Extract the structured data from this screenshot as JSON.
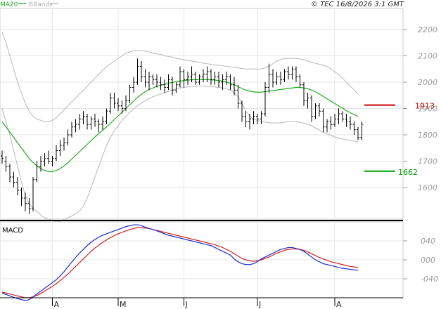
{
  "header": {
    "legend": [
      {
        "label": "MA20",
        "color": "#22aa22"
      },
      {
        "label": "BBands",
        "color": "#b0b0b0"
      }
    ],
    "copyright": "© TEC 16/8/2026 3:1 GMT"
  },
  "chart_data": [
    {
      "type": "ohlc",
      "panel": "price",
      "y_ticks": [
        "2200",
        "2100",
        "2000",
        "1900",
        "1800",
        "1700",
        "1600"
      ],
      "ylim": [
        1480,
        2280
      ],
      "x_labels": [
        "A",
        "M",
        "J",
        "J",
        "A"
      ],
      "bars": [
        [
          1720,
          1740,
          1690,
          1710
        ],
        [
          1700,
          1720,
          1660,
          1680
        ],
        [
          1680,
          1690,
          1620,
          1640
        ],
        [
          1640,
          1660,
          1600,
          1620
        ],
        [
          1620,
          1640,
          1570,
          1590
        ],
        [
          1590,
          1600,
          1530,
          1560
        ],
        [
          1560,
          1580,
          1510,
          1540
        ],
        [
          1540,
          1560,
          1500,
          1520
        ],
        [
          1520,
          1640,
          1510,
          1630
        ],
        [
          1630,
          1700,
          1620,
          1680
        ],
        [
          1680,
          1720,
          1660,
          1700
        ],
        [
          1700,
          1730,
          1680,
          1710
        ],
        [
          1710,
          1740,
          1690,
          1700
        ],
        [
          1700,
          1720,
          1680,
          1710
        ],
        [
          1710,
          1760,
          1700,
          1740
        ],
        [
          1740,
          1780,
          1720,
          1760
        ],
        [
          1760,
          1790,
          1740,
          1770
        ],
        [
          1770,
          1820,
          1760,
          1800
        ],
        [
          1800,
          1850,
          1790,
          1830
        ],
        [
          1830,
          1860,
          1810,
          1840
        ],
        [
          1840,
          1880,
          1820,
          1860
        ],
        [
          1860,
          1890,
          1840,
          1870
        ],
        [
          1870,
          1880,
          1820,
          1840
        ],
        [
          1840,
          1870,
          1820,
          1860
        ],
        [
          1860,
          1880,
          1830,
          1850
        ],
        [
          1850,
          1860,
          1810,
          1840
        ],
        [
          1840,
          1870,
          1820,
          1850
        ],
        [
          1850,
          1900,
          1840,
          1890
        ],
        [
          1890,
          1960,
          1880,
          1940
        ],
        [
          1940,
          1960,
          1900,
          1920
        ],
        [
          1920,
          1940,
          1890,
          1910
        ],
        [
          1910,
          1930,
          1880,
          1900
        ],
        [
          1900,
          1950,
          1890,
          1930
        ],
        [
          1930,
          1990,
          1920,
          1980
        ],
        [
          1980,
          2020,
          1960,
          2000
        ],
        [
          2000,
          2090,
          1990,
          2060
        ],
        [
          2060,
          2080,
          2000,
          2020
        ],
        [
          2020,
          2050,
          1980,
          2000
        ],
        [
          2000,
          2040,
          1970,
          2020
        ],
        [
          2020,
          2030,
          1990,
          2010
        ],
        [
          2010,
          2030,
          1980,
          2000
        ],
        [
          2000,
          2020,
          1970,
          1990
        ],
        [
          1990,
          2010,
          1960,
          1980
        ],
        [
          1980,
          2030,
          1970,
          2010
        ],
        [
          2010,
          2020,
          1950,
          1970
        ],
        [
          1970,
          2000,
          1960,
          1990
        ],
        [
          1990,
          2060,
          1980,
          2040
        ],
        [
          2040,
          2050,
          1980,
          2010
        ],
        [
          2010,
          2040,
          1990,
          2020
        ],
        [
          2020,
          2060,
          2000,
          2030
        ],
        [
          2030,
          2040,
          1990,
          2000
        ],
        [
          2000,
          2030,
          1990,
          2020
        ],
        [
          2020,
          2050,
          2000,
          2030
        ],
        [
          2030,
          2060,
          2000,
          2040
        ],
        [
          2040,
          2050,
          1990,
          2010
        ],
        [
          2010,
          2040,
          1990,
          2020
        ],
        [
          2020,
          2040,
          1980,
          2000
        ],
        [
          2000,
          2030,
          1970,
          2010
        ],
        [
          2010,
          2040,
          1990,
          2020
        ],
        [
          2020,
          2030,
          1970,
          1990
        ],
        [
          1990,
          2020,
          1950,
          1970
        ],
        [
          1970,
          1990,
          1900,
          1920
        ],
        [
          1920,
          1930,
          1850,
          1870
        ],
        [
          1870,
          1890,
          1830,
          1850
        ],
        [
          1850,
          1880,
          1820,
          1860
        ],
        [
          1860,
          1890,
          1840,
          1870
        ],
        [
          1870,
          1880,
          1840,
          1860
        ],
        [
          1860,
          1890,
          1840,
          1880
        ],
        [
          1880,
          2000,
          1870,
          1980
        ],
        [
          1980,
          2070,
          1960,
          2030
        ],
        [
          2030,
          2050,
          1980,
          2000
        ],
        [
          2000,
          2040,
          1990,
          2020
        ],
        [
          2020,
          2040,
          1990,
          2010
        ],
        [
          2010,
          2050,
          2000,
          2040
        ],
        [
          2040,
          2060,
          2010,
          2030
        ],
        [
          2030,
          2060,
          2010,
          2050
        ],
        [
          2050,
          2060,
          2000,
          2020
        ],
        [
          2020,
          2030,
          1980,
          1990
        ],
        [
          1990,
          2000,
          1910,
          1930
        ],
        [
          1930,
          1960,
          1900,
          1940
        ],
        [
          1940,
          1950,
          1850,
          1870
        ],
        [
          1870,
          1920,
          1860,
          1910
        ],
        [
          1910,
          1920,
          1870,
          1890
        ],
        [
          1890,
          1900,
          1810,
          1830
        ],
        [
          1830,
          1860,
          1810,
          1850
        ],
        [
          1850,
          1870,
          1820,
          1840
        ],
        [
          1840,
          1880,
          1830,
          1860
        ],
        [
          1860,
          1900,
          1840,
          1880
        ],
        [
          1880,
          1890,
          1850,
          1860
        ],
        [
          1860,
          1880,
          1830,
          1850
        ],
        [
          1850,
          1870,
          1820,
          1840
        ],
        [
          1840,
          1850,
          1800,
          1820
        ],
        [
          1820,
          1830,
          1780,
          1790
        ],
        [
          1790,
          1850,
          1780,
          1840
        ]
      ],
      "ma20": [
        1850,
        1830,
        1810,
        1790,
        1770,
        1750,
        1730,
        1710,
        1695,
        1682,
        1672,
        1665,
        1660,
        1660,
        1664,
        1672,
        1682,
        1694,
        1708,
        1722,
        1736,
        1750,
        1764,
        1778,
        1792,
        1805,
        1818,
        1830,
        1844,
        1858,
        1872,
        1886,
        1900,
        1914,
        1928,
        1942,
        1954,
        1964,
        1972,
        1978,
        1984,
        1988,
        1992,
        1996,
        1999,
        2002,
        2004,
        2006,
        2008,
        2009,
        2010,
        2010,
        2010,
        2010,
        2009,
        2008,
        2006,
        2004,
        2000,
        1996,
        1990,
        1983,
        1976,
        1970,
        1966,
        1963,
        1962,
        1962,
        1964,
        1966,
        1968,
        1970,
        1972,
        1974,
        1976,
        1978,
        1980,
        1980,
        1978,
        1975,
        1970,
        1963,
        1955,
        1946,
        1937,
        1928,
        1919,
        1910,
        1901,
        1892,
        1884,
        1877,
        1870
      ],
      "bb_upper": [
        2190,
        2150,
        2100,
        2050,
        2000,
        1960,
        1920,
        1890,
        1870,
        1860,
        1855,
        1850,
        1850,
        1855,
        1865,
        1880,
        1895,
        1910,
        1925,
        1940,
        1955,
        1970,
        1985,
        2000,
        2015,
        2030,
        2045,
        2060,
        2070,
        2080,
        2090,
        2100,
        2110,
        2115,
        2120,
        2120,
        2120,
        2118,
        2115,
        2110,
        2108,
        2105,
        2100,
        2098,
        2095,
        2090,
        2088,
        2085,
        2082,
        2080,
        2078,
        2075,
        2072,
        2070,
        2068,
        2066,
        2064,
        2062,
        2060,
        2058,
        2056,
        2054,
        2052,
        2050,
        2050,
        2050,
        2050,
        2050,
        2055,
        2060,
        2070,
        2080,
        2085,
        2090,
        2090,
        2090,
        2090,
        2088,
        2085,
        2080,
        2076,
        2072,
        2068,
        2064,
        2060,
        2050,
        2040,
        2030,
        2015,
        2000,
        1985,
        1970,
        1955
      ],
      "bb_lower": [
        1900,
        1850,
        1800,
        1740,
        1680,
        1620,
        1570,
        1540,
        1520,
        1510,
        1495,
        1485,
        1480,
        1475,
        1470,
        1472,
        1478,
        1485,
        1492,
        1500,
        1510,
        1530,
        1560,
        1600,
        1640,
        1680,
        1720,
        1760,
        1790,
        1815,
        1835,
        1855,
        1870,
        1885,
        1900,
        1910,
        1920,
        1930,
        1938,
        1945,
        1950,
        1955,
        1960,
        1965,
        1970,
        1975,
        1978,
        1980,
        1982,
        1983,
        1984,
        1985,
        1985,
        1984,
        1983,
        1982,
        1980,
        1978,
        1975,
        1970,
        1960,
        1945,
        1920,
        1890,
        1870,
        1860,
        1855,
        1850,
        1848,
        1846,
        1845,
        1845,
        1846,
        1848,
        1850,
        1850,
        1850,
        1848,
        1844,
        1840,
        1834,
        1826,
        1818,
        1810,
        1804,
        1798,
        1792,
        1788,
        1784,
        1781,
        1778,
        1776,
        1775
      ]
    },
    {
      "type": "line",
      "panel": "macd",
      "title": "MACD",
      "y_ticks": [
        "040",
        "000",
        "-040"
      ],
      "ylim": [
        -80,
        80
      ],
      "series": [
        {
          "color": "#1f2bd0",
          "values": [
            -70,
            -73,
            -76,
            -79,
            -82,
            -84,
            -86,
            -84,
            -78,
            -72,
            -66,
            -60,
            -54,
            -48,
            -42,
            -34,
            -25,
            -15,
            -5,
            5,
            14,
            22,
            30,
            37,
            43,
            48,
            52,
            55,
            58,
            61,
            64,
            67,
            70,
            72,
            74,
            74,
            72,
            69,
            66,
            64,
            61,
            58,
            55,
            52,
            50,
            48,
            46,
            44,
            42,
            40,
            38,
            36,
            34,
            32,
            30,
            26,
            22,
            18,
            14,
            10,
            2,
            -4,
            -8,
            -10,
            -10,
            -8,
            -4,
            2,
            6,
            10,
            14,
            18,
            22,
            24,
            26,
            26,
            24,
            22,
            18,
            12,
            6,
            0,
            -4,
            -8,
            -10,
            -12,
            -14,
            -16,
            -18,
            -19,
            -20,
            -21,
            -22
          ]
        },
        {
          "color": "#cc2222",
          "values": [
            -68,
            -70,
            -72,
            -74,
            -76,
            -78,
            -80,
            -80,
            -78,
            -75,
            -71,
            -66,
            -61,
            -56,
            -50,
            -44,
            -37,
            -30,
            -22,
            -14,
            -6,
            2,
            10,
            18,
            25,
            31,
            37,
            42,
            47,
            51,
            55,
            58,
            61,
            64,
            66,
            68,
            68,
            67,
            66,
            64,
            62,
            60,
            58,
            56,
            54,
            52,
            50,
            48,
            46,
            44,
            42,
            40,
            38,
            36,
            34,
            32,
            29,
            26,
            22,
            18,
            13,
            8,
            3,
            0,
            -2,
            -3,
            -2,
            0,
            3,
            6,
            10,
            14,
            17,
            20,
            22,
            23,
            23,
            22,
            20,
            17,
            13,
            9,
            5,
            2,
            -1,
            -4,
            -6,
            -8,
            -10,
            -12,
            -14,
            -15,
            -16
          ]
        }
      ]
    }
  ],
  "annotations": {
    "resistance": {
      "value": 1913,
      "label": "1913",
      "color": "#cc0000"
    },
    "support": {
      "value": 1662,
      "label": "1662",
      "color": "#009900"
    }
  }
}
